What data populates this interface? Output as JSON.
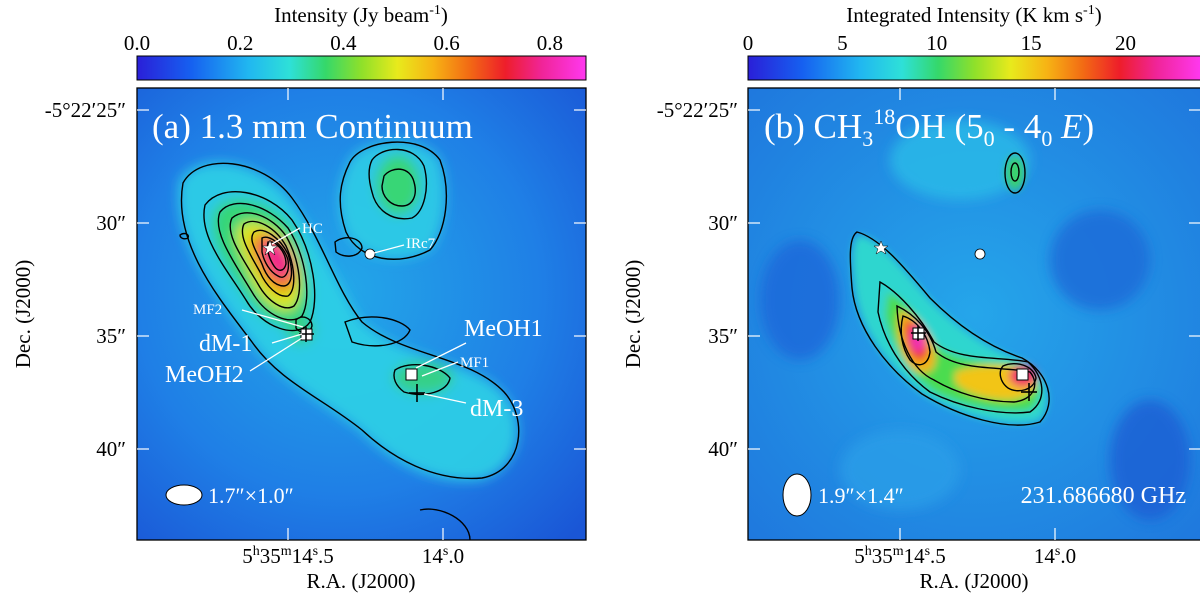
{
  "chart_data": [
    {
      "type": "heatmap",
      "panel": "(a)",
      "title": "(a) 1.3 mm Continuum",
      "colorbar": {
        "label_main": "Intensity (Jy beam",
        "label_sup": "-1",
        "label_close": ")",
        "ticks": [
          "0.0",
          "0.2",
          "0.4",
          "0.6",
          "0.8"
        ],
        "range": [
          0.0,
          0.87
        ]
      },
      "xlabel": "R.A. (J2000)",
      "ylabel": "Dec. (J2000)",
      "xticks": [
        {
          "main": "5",
          "h": "h",
          "mid": "35",
          "m": "m",
          "tail": "14",
          "s": "s",
          "end": ".5"
        },
        {
          "main": "",
          "h": "",
          "mid": "",
          "m": "",
          "tail": "14",
          "s": "s",
          "end": ".0"
        }
      ],
      "yticks": [
        "-5°22′25″",
        "30″",
        "35″",
        "40″"
      ],
      "beam": "1.7″×1.0″",
      "sources": [
        {
          "name": "HC",
          "kind": "star"
        },
        {
          "name": "IRc7",
          "kind": "circle"
        },
        {
          "name": "MF2",
          "kind": "label"
        },
        {
          "name": "dM-1",
          "kind": "plus"
        },
        {
          "name": "MeOH2",
          "kind": "square"
        },
        {
          "name": "MeOH1",
          "kind": "square"
        },
        {
          "name": "MF1",
          "kind": "label"
        },
        {
          "name": "dM-3",
          "kind": "plus"
        }
      ],
      "peaks": [
        {
          "name": "HC",
          "intensity": 0.85
        },
        {
          "name": "northern clump",
          "intensity": 0.38
        },
        {
          "name": "MeOH1 region",
          "intensity": 0.36
        }
      ]
    },
    {
      "type": "heatmap",
      "panel": "(b)",
      "title_parts": {
        "a": "(b) CH",
        "sub3": "3",
        "sup18": "18",
        "b": "OH (5",
        "sub0a": "0",
        "c": " - 4",
        "sub0b": "0",
        "d": " ",
        "e": "E",
        "f": ")"
      },
      "colorbar": {
        "label_main": "Integrated Intensity (K km s",
        "label_sup": "-1",
        "label_close": ")",
        "ticks": [
          "0",
          "5",
          "10",
          "15",
          "20"
        ],
        "range": [
          0,
          24
        ]
      },
      "xlabel": "R.A. (J2000)",
      "ylabel": "Dec. (J2000)",
      "yticks": [
        "-5°22′25″",
        "30″",
        "35″",
        "40″"
      ],
      "beam": "1.9″×1.4″",
      "frequency": "231.686680 GHz",
      "peaks": [
        {
          "name": "MeOH2 / dM-1",
          "intensity": 22
        },
        {
          "name": "MeOH1 / dM-3",
          "intensity": 21
        },
        {
          "name": "northern knot",
          "intensity": 8
        }
      ]
    }
  ]
}
